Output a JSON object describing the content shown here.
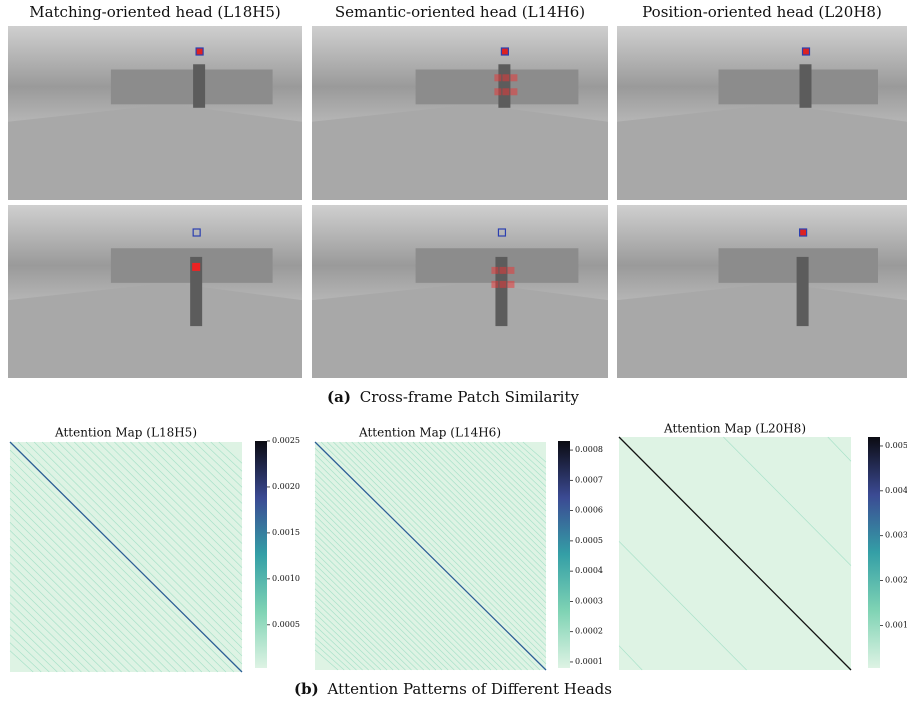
{
  "panel_a": {
    "column_titles": [
      "Matching-oriented head (L18H5)",
      "Semantic-oriented head (L14H6)",
      "Position-oriented head (L20H8)"
    ],
    "caption": {
      "label": "(a)",
      "text": "Cross-frame Patch Similarity"
    }
  },
  "panel_b": {
    "maps": [
      {
        "title": "Attention Map (L18H5)",
        "colorbar": {
          "range": [
            3e-05,
            0.0025
          ],
          "ticks": [
            0.0005,
            {
              "value": 0.001,
              "label": "0.0010"
            },
            0.0015,
            {
              "value": 0.002,
              "label": "0.0020"
            },
            0.0025
          ]
        }
      },
      {
        "title": "Attention Map (L14H6)",
        "colorbar": {
          "range": [
            8e-05,
            0.00083
          ],
          "ticks": [
            0.0001,
            0.0002,
            0.0003,
            0.0004,
            0.0005,
            0.0006,
            0.0007,
            0.0008
          ]
        }
      },
      {
        "title": "Attention Map (L20H8)",
        "colorbar": {
          "range": [
            5e-05,
            0.0052
          ],
          "ticks": [
            0.001,
            0.002,
            0.003,
            0.004,
            0.005
          ]
        }
      }
    ],
    "caption": {
      "label": "(b)",
      "text": "Attention Patterns of Different Heads"
    }
  }
}
